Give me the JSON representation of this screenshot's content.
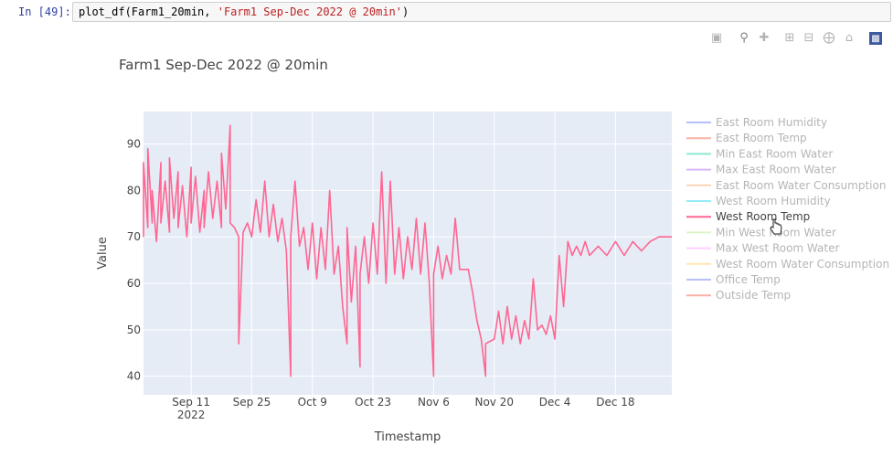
{
  "cell": {
    "prompt": "In [49]:",
    "code_fn": "plot_df(Farm1_20min, ",
    "code_str": "'Farm1 Sep-Dec 2022 @ 20min'",
    "code_end": ")"
  },
  "modebar": {
    "icons": [
      "camera-icon",
      "zoom-icon",
      "pan-icon",
      "zoom-in-icon",
      "zoom-out-icon",
      "autoscale-icon",
      "reset-axes-icon",
      "plotly-logo-icon"
    ]
  },
  "chart_data": {
    "type": "line",
    "title": "Farm1 Sep-Dec 2022 @ 20min",
    "xlabel": "Timestamp",
    "ylabel": "Value",
    "xlim": [
      "2022-08-31",
      "2022-12-31"
    ],
    "ylim": [
      36,
      97
    ],
    "x_ticks": [
      {
        "date": "2022-09-11",
        "label": "Sep 11",
        "sub": "2022"
      },
      {
        "date": "2022-09-25",
        "label": "Sep 25",
        "sub": ""
      },
      {
        "date": "2022-10-09",
        "label": "Oct 9",
        "sub": ""
      },
      {
        "date": "2022-10-23",
        "label": "Oct 23",
        "sub": ""
      },
      {
        "date": "2022-11-06",
        "label": "Nov 6",
        "sub": ""
      },
      {
        "date": "2022-11-20",
        "label": "Nov 20",
        "sub": ""
      },
      {
        "date": "2022-12-04",
        "label": "Dec 4",
        "sub": ""
      },
      {
        "date": "2022-12-18",
        "label": "Dec 18",
        "sub": ""
      }
    ],
    "y_ticks": [
      40,
      50,
      60,
      70,
      80,
      90
    ],
    "grid": true,
    "legend_position": "right",
    "legend": [
      {
        "name": "East Room Humidity",
        "color": "#636efa",
        "visible": false
      },
      {
        "name": "East Room Temp",
        "color": "#ef553b",
        "visible": false
      },
      {
        "name": "Min East Room Water",
        "color": "#00cc96",
        "visible": false
      },
      {
        "name": "Max East Room Water",
        "color": "#ab63fa",
        "visible": false
      },
      {
        "name": "East Room Water Consumption",
        "color": "#ffa15a",
        "visible": false
      },
      {
        "name": "West Room Humidity",
        "color": "#19d3f3",
        "visible": false
      },
      {
        "name": "West Room Temp",
        "color": "#ff6692",
        "visible": true
      },
      {
        "name": "Min West Room Water",
        "color": "#b6e880",
        "visible": false
      },
      {
        "name": "Max West Room Water",
        "color": "#ff97ff",
        "visible": false
      },
      {
        "name": "West Room Water Consumption",
        "color": "#fecb52",
        "visible": false
      },
      {
        "name": "Office Temp",
        "color": "#636efa",
        "visible": false
      },
      {
        "name": "Outside Temp",
        "color": "#ef553b",
        "visible": false
      }
    ],
    "series": [
      {
        "name": "West Room Temp",
        "color": "#ff6692",
        "points": [
          [
            "2022-08-31",
            70
          ],
          [
            "2022-08-31",
            86
          ],
          [
            "2022-09-01",
            72
          ],
          [
            "2022-09-01",
            89
          ],
          [
            "2022-09-02",
            73
          ],
          [
            "2022-09-02",
            80
          ],
          [
            "2022-09-03",
            69
          ],
          [
            "2022-09-04",
            86
          ],
          [
            "2022-09-04",
            73
          ],
          [
            "2022-09-05",
            82
          ],
          [
            "2022-09-06",
            71
          ],
          [
            "2022-09-06",
            87
          ],
          [
            "2022-09-07",
            74
          ],
          [
            "2022-09-08",
            84
          ],
          [
            "2022-09-08",
            72
          ],
          [
            "2022-09-09",
            81
          ],
          [
            "2022-09-10",
            70
          ],
          [
            "2022-09-11",
            85
          ],
          [
            "2022-09-11",
            73
          ],
          [
            "2022-09-12",
            83
          ],
          [
            "2022-09-13",
            71
          ],
          [
            "2022-09-14",
            80
          ],
          [
            "2022-09-14",
            72
          ],
          [
            "2022-09-15",
            84
          ],
          [
            "2022-09-16",
            74
          ],
          [
            "2022-09-17",
            82
          ],
          [
            "2022-09-18",
            72
          ],
          [
            "2022-09-18",
            88
          ],
          [
            "2022-09-19",
            76
          ],
          [
            "2022-09-20",
            94
          ],
          [
            "2022-09-20",
            73
          ],
          [
            "2022-09-21",
            72
          ],
          [
            "2022-09-22",
            70
          ],
          [
            "2022-09-22",
            47
          ],
          [
            "2022-09-23",
            71
          ],
          [
            "2022-09-24",
            73
          ],
          [
            "2022-09-25",
            70
          ],
          [
            "2022-09-26",
            78
          ],
          [
            "2022-09-27",
            71
          ],
          [
            "2022-09-28",
            82
          ],
          [
            "2022-09-29",
            70
          ],
          [
            "2022-09-30",
            77
          ],
          [
            "2022-10-01",
            69
          ],
          [
            "2022-10-02",
            74
          ],
          [
            "2022-10-03",
            67
          ],
          [
            "2022-10-04",
            40
          ],
          [
            "2022-10-04",
            70
          ],
          [
            "2022-10-05",
            82
          ],
          [
            "2022-10-06",
            68
          ],
          [
            "2022-10-07",
            72
          ],
          [
            "2022-10-08",
            63
          ],
          [
            "2022-10-09",
            73
          ],
          [
            "2022-10-10",
            61
          ],
          [
            "2022-10-11",
            72
          ],
          [
            "2022-10-12",
            63
          ],
          [
            "2022-10-13",
            80
          ],
          [
            "2022-10-14",
            62
          ],
          [
            "2022-10-15",
            68
          ],
          [
            "2022-10-16",
            55
          ],
          [
            "2022-10-17",
            47
          ],
          [
            "2022-10-17",
            72
          ],
          [
            "2022-10-18",
            56
          ],
          [
            "2022-10-19",
            68
          ],
          [
            "2022-10-20",
            42
          ],
          [
            "2022-10-20",
            62
          ],
          [
            "2022-10-21",
            70
          ],
          [
            "2022-10-22",
            60
          ],
          [
            "2022-10-23",
            73
          ],
          [
            "2022-10-24",
            62
          ],
          [
            "2022-10-25",
            84
          ],
          [
            "2022-10-26",
            60
          ],
          [
            "2022-10-27",
            82
          ],
          [
            "2022-10-28",
            62
          ],
          [
            "2022-10-29",
            72
          ],
          [
            "2022-10-30",
            61
          ],
          [
            "2022-10-31",
            70
          ],
          [
            "2022-11-01",
            63
          ],
          [
            "2022-11-02",
            74
          ],
          [
            "2022-11-03",
            62
          ],
          [
            "2022-11-04",
            73
          ],
          [
            "2022-11-05",
            60
          ],
          [
            "2022-11-06",
            40
          ],
          [
            "2022-11-06",
            62
          ],
          [
            "2022-11-07",
            68
          ],
          [
            "2022-11-08",
            61
          ],
          [
            "2022-11-09",
            66
          ],
          [
            "2022-11-10",
            62
          ],
          [
            "2022-11-11",
            74
          ],
          [
            "2022-11-12",
            63
          ],
          [
            "2022-11-14",
            63
          ],
          [
            "2022-11-15",
            58
          ],
          [
            "2022-11-16",
            52
          ],
          [
            "2022-11-17",
            48
          ],
          [
            "2022-11-18",
            40
          ],
          [
            "2022-11-18",
            47
          ],
          [
            "2022-11-20",
            48
          ],
          [
            "2022-11-21",
            54
          ],
          [
            "2022-11-22",
            47
          ],
          [
            "2022-11-23",
            55
          ],
          [
            "2022-11-24",
            48
          ],
          [
            "2022-11-25",
            53
          ],
          [
            "2022-11-26",
            47
          ],
          [
            "2022-11-27",
            52
          ],
          [
            "2022-11-28",
            48
          ],
          [
            "2022-11-29",
            61
          ],
          [
            "2022-11-30",
            50
          ],
          [
            "2022-12-01",
            51
          ],
          [
            "2022-12-02",
            49
          ],
          [
            "2022-12-03",
            53
          ],
          [
            "2022-12-04",
            48
          ],
          [
            "2022-12-05",
            66
          ],
          [
            "2022-12-06",
            55
          ],
          [
            "2022-12-07",
            69
          ],
          [
            "2022-12-08",
            66
          ],
          [
            "2022-12-09",
            68
          ],
          [
            "2022-12-10",
            66
          ],
          [
            "2022-12-11",
            69
          ],
          [
            "2022-12-12",
            66
          ],
          [
            "2022-12-14",
            68
          ],
          [
            "2022-12-16",
            66
          ],
          [
            "2022-12-18",
            69
          ],
          [
            "2022-12-20",
            66
          ],
          [
            "2022-12-22",
            69
          ],
          [
            "2022-12-24",
            67
          ],
          [
            "2022-12-26",
            69
          ],
          [
            "2022-12-28",
            70
          ],
          [
            "2022-12-31",
            70
          ]
        ]
      }
    ]
  }
}
